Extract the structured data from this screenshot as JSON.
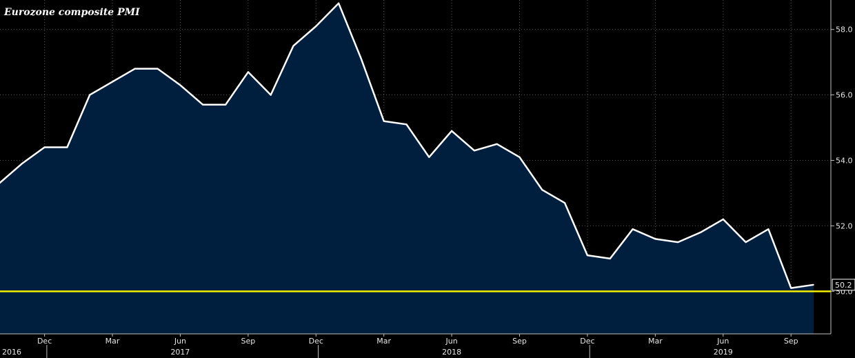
{
  "chart_data": {
    "type": "area",
    "title": "Eurozone composite PMI",
    "xlabel": "",
    "ylabel": "",
    "ylim": [
      48.7,
      58.9
    ],
    "yticks": [
      {
        "value": 58.0,
        "label": "58.0"
      },
      {
        "value": 56.0,
        "label": "56.0"
      },
      {
        "value": 54.0,
        "label": "54.0"
      },
      {
        "value": 52.0,
        "label": "52.0"
      },
      {
        "value": 50.0,
        "label": "50.0"
      }
    ],
    "x": [
      "2016-10",
      "2016-11",
      "2016-12",
      "2017-01",
      "2017-02",
      "2017-03",
      "2017-04",
      "2017-05",
      "2017-06",
      "2017-07",
      "2017-08",
      "2017-09",
      "2017-10",
      "2017-11",
      "2017-12",
      "2018-01",
      "2018-02",
      "2018-03",
      "2018-04",
      "2018-05",
      "2018-06",
      "2018-07",
      "2018-08",
      "2018-09",
      "2018-10",
      "2018-11",
      "2018-12",
      "2019-01",
      "2019-02",
      "2019-03",
      "2019-04",
      "2019-05",
      "2019-06",
      "2019-07",
      "2019-08",
      "2019-09",
      "2019-10"
    ],
    "series": [
      {
        "values": [
          53.3,
          53.9,
          54.4,
          54.4,
          56.0,
          56.4,
          56.8,
          56.8,
          56.3,
          55.7,
          55.7,
          56.7,
          56.0,
          57.5,
          58.1,
          58.8,
          57.1,
          55.2,
          55.1,
          54.1,
          54.9,
          54.3,
          54.5,
          54.1,
          53.1,
          52.7,
          51.1,
          51.0,
          51.9,
          51.6,
          51.5,
          51.8,
          52.2,
          51.5,
          51.9,
          50.1,
          50.2
        ]
      }
    ],
    "xticks": [
      {
        "pos": "2016-12",
        "label": "Dec"
      },
      {
        "pos": "2017-03",
        "label": "Mar"
      },
      {
        "pos": "2017-06",
        "label": "Jun"
      },
      {
        "pos": "2017-09",
        "label": "Sep"
      },
      {
        "pos": "2017-12",
        "label": "Dec"
      },
      {
        "pos": "2018-03",
        "label": "Mar"
      },
      {
        "pos": "2018-06",
        "label": "Jun"
      },
      {
        "pos": "2018-09",
        "label": "Sep"
      },
      {
        "pos": "2018-12",
        "label": "Dec"
      },
      {
        "pos": "2019-03",
        "label": "Mar"
      },
      {
        "pos": "2019-06",
        "label": "Jun"
      },
      {
        "pos": "2019-09",
        "label": "Sep"
      }
    ],
    "years": [
      {
        "pos": "2016-10",
        "label": "2016"
      },
      {
        "pos": "2017-06",
        "label": "2017"
      },
      {
        "pos": "2018-06",
        "label": "2018"
      },
      {
        "pos": "2019-06",
        "label": "2019"
      }
    ],
    "year_boundaries": [
      "2016-12",
      "2017-12",
      "2018-12"
    ],
    "reference_line": {
      "value": 50.0,
      "color": "#f5f000"
    },
    "last_value_label": "50.2",
    "grid": true,
    "legend": "none",
    "colors": {
      "line": "#ffffff",
      "fill": "#001f3f",
      "background": "#000000",
      "grid": "#5a5a5a"
    }
  }
}
